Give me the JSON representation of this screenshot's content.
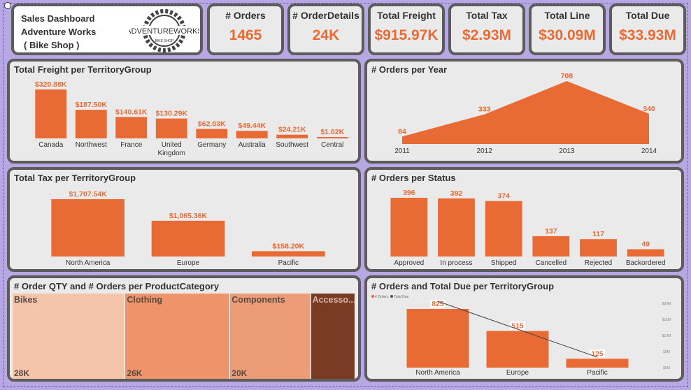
{
  "header": {
    "title_lines": [
      "Sales Dashboard",
      "Adventure Works",
      "( Bike Shop )"
    ],
    "logo_text": "ADVENTUREWORKS",
    "logo_sub": "BIKE SHOP"
  },
  "kpis": [
    {
      "label": "# Orders",
      "value": "1465"
    },
    {
      "label": "# OrderDetails",
      "value": "24K"
    },
    {
      "label": "Total Freight",
      "value": "$915.97K"
    },
    {
      "label": "Total Tax",
      "value": "$2.93M"
    },
    {
      "label": "Total Line",
      "value": "$30.09M"
    },
    {
      "label": "Total Due",
      "value": "$33.93M"
    }
  ],
  "colors": {
    "accent": "#e86a34",
    "card_bg": "#eaeaea",
    "card_border": "#5c5c5c",
    "page_bg": "#b7a8e4"
  },
  "chart_data": [
    {
      "id": "freight",
      "type": "bar",
      "title": "Total Freight per TerritoryGroup",
      "categories": [
        "Canada",
        "Northwest",
        "France",
        "United Kingdom",
        "Germany",
        "Australia",
        "Southwest",
        "Central"
      ],
      "values": [
        320.88,
        187.5,
        140.61,
        130.29,
        62.03,
        49.44,
        24.21,
        1.02
      ],
      "labels": [
        "$320.88K",
        "$187.50K",
        "$140.61K",
        "$130.29K",
        "$62.03K",
        "$49.44K",
        "$24.21K",
        "$1.02K"
      ]
    },
    {
      "id": "orders_year",
      "type": "area",
      "title": "# Orders per Year",
      "x": [
        "2011",
        "2012",
        "2013",
        "2014"
      ],
      "values": [
        84,
        333,
        708,
        340
      ]
    },
    {
      "id": "tax",
      "type": "bar",
      "title": "Total Tax per TerritoryGroup",
      "categories": [
        "North America",
        "Europe",
        "Pacific"
      ],
      "values": [
        1707.54,
        1065.36,
        158.2
      ],
      "labels": [
        "$1,707.54K",
        "$1,065.36K",
        "$158.20K"
      ]
    },
    {
      "id": "status",
      "type": "bar",
      "title": "# Orders per Status",
      "categories": [
        "Approved",
        "In process",
        "Shipped",
        "Cancelled",
        "Rejected",
        "Backordered"
      ],
      "values": [
        396,
        392,
        374,
        137,
        117,
        49
      ]
    },
    {
      "id": "category",
      "type": "treemap",
      "title": "# Order QTY and # Orders per ProductCategory",
      "categories": [
        "Bikes",
        "Clothing",
        "Components",
        "Accesso..."
      ],
      "labels": [
        "28K",
        "26K",
        "20K",
        ""
      ],
      "values": [
        28,
        26,
        20,
        11
      ],
      "colors": [
        "#f4c4ab",
        "#ef946a",
        "#ec9c76",
        "#7a3b25"
      ]
    },
    {
      "id": "orders_due",
      "type": "bar",
      "title": "# Orders and Total Due per TerritoryGroup",
      "legend": [
        "# Orders",
        "Total Due"
      ],
      "categories": [
        "North America",
        "Europe",
        "Pacific"
      ],
      "values": [
        825,
        515,
        125
      ],
      "line_values": [
        19,
        11,
        3
      ],
      "right_axis": [
        "$20M",
        "$15M",
        "$10M",
        "$5M",
        "$0M"
      ]
    }
  ]
}
